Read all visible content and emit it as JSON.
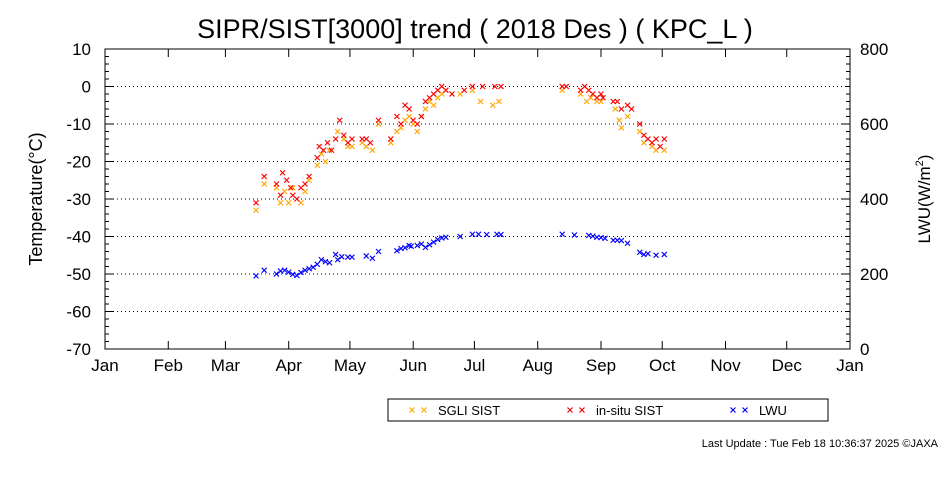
{
  "chart_data": {
    "type": "scatter",
    "title": "SIPR/SIST[3000] trend ( 2018 Des ) ( KPC_L )",
    "ylabel": "Temperature(°C)",
    "ylabel_right_main": "LWU(W/m",
    "ylabel_right_sup": "2",
    "ylabel_right_end": ")",
    "ylim": [
      -70,
      10
    ],
    "y_ticks": [
      "10",
      "0",
      "-10",
      "-20",
      "-30",
      "-40",
      "-50",
      "-60",
      "-70"
    ],
    "y2lim": [
      0,
      800
    ],
    "y2_ticks": [
      "800",
      "600",
      "400",
      "200",
      "0"
    ],
    "xlim": [
      0,
      365
    ],
    "x_ticks": [
      "Jan",
      "Feb",
      "Mar",
      "Apr",
      "May",
      "Jun",
      "Jul",
      "Aug",
      "Sep",
      "Oct",
      "Nov",
      "Dec",
      "Jan"
    ],
    "grid": "dotted horizontal at y = 0, -10, -20, -30, -40, -50, -60",
    "legend": "bottom",
    "colors": {
      "sgli": "#ffa500",
      "insitu": "#ff0000",
      "lwu": "#0000ff"
    },
    "series": [
      {
        "name": "SGLI SIST",
        "axis": "left",
        "points": [
          [
            74,
            -33
          ],
          [
            78,
            -26
          ],
          [
            84,
            -27
          ],
          [
            86,
            -31
          ],
          [
            88,
            -28
          ],
          [
            90,
            -31
          ],
          [
            92,
            -27
          ],
          [
            96,
            -31
          ],
          [
            98,
            -28
          ],
          [
            100,
            -25
          ],
          [
            104,
            -21
          ],
          [
            106,
            -18
          ],
          [
            108,
            -20
          ],
          [
            110,
            -17
          ],
          [
            114,
            -12
          ],
          [
            117,
            -14
          ],
          [
            119,
            -16
          ],
          [
            121,
            -16
          ],
          [
            126,
            -15
          ],
          [
            128,
            -16
          ],
          [
            131,
            -17
          ],
          [
            134,
            -10
          ],
          [
            140,
            -15
          ],
          [
            143,
            -12
          ],
          [
            145,
            -11
          ],
          [
            147,
            -9
          ],
          [
            149,
            -8
          ],
          [
            151,
            -10
          ],
          [
            153,
            -12
          ],
          [
            155,
            -8
          ],
          [
            157,
            -6
          ],
          [
            159,
            -4
          ],
          [
            161,
            -5
          ],
          [
            163,
            -3
          ],
          [
            165,
            -2
          ],
          [
            167,
            -1
          ],
          [
            174,
            -2
          ],
          [
            180,
            -1
          ],
          [
            184,
            -4
          ],
          [
            190,
            -5
          ],
          [
            193,
            -4
          ],
          [
            224,
            -1
          ],
          [
            233,
            -2
          ],
          [
            236,
            -4
          ],
          [
            238,
            -3
          ],
          [
            241,
            -4
          ],
          [
            243,
            -4
          ],
          [
            250,
            -6
          ],
          [
            252,
            -9
          ],
          [
            253,
            -11
          ],
          [
            256,
            -8
          ],
          [
            262,
            -12
          ],
          [
            264,
            -15
          ],
          [
            268,
            -16
          ],
          [
            270,
            -17
          ],
          [
            274,
            -17
          ]
        ]
      },
      {
        "name": "in-situ SIST",
        "axis": "left",
        "points": [
          [
            74,
            -31
          ],
          [
            78,
            -24
          ],
          [
            84,
            -26
          ],
          [
            86,
            -29
          ],
          [
            87,
            -23
          ],
          [
            89,
            -25
          ],
          [
            91,
            -27
          ],
          [
            92,
            -29
          ],
          [
            94,
            -30
          ],
          [
            96,
            -27
          ],
          [
            98,
            -26
          ],
          [
            100,
            -24
          ],
          [
            104,
            -19
          ],
          [
            105,
            -16
          ],
          [
            107,
            -17
          ],
          [
            109,
            -15
          ],
          [
            111,
            -17
          ],
          [
            113,
            -14
          ],
          [
            115,
            -9
          ],
          [
            117,
            -13
          ],
          [
            119,
            -15
          ],
          [
            121,
            -14
          ],
          [
            126,
            -14
          ],
          [
            128,
            -14
          ],
          [
            130,
            -15
          ],
          [
            134,
            -9
          ],
          [
            140,
            -14
          ],
          [
            143,
            -8
          ],
          [
            145,
            -10
          ],
          [
            147,
            -5
          ],
          [
            149,
            -6
          ],
          [
            151,
            -9
          ],
          [
            153,
            -10
          ],
          [
            155,
            -8
          ],
          [
            157,
            -4
          ],
          [
            159,
            -3
          ],
          [
            161,
            -2
          ],
          [
            163,
            -1
          ],
          [
            165,
            0
          ],
          [
            167,
            -1
          ],
          [
            170,
            -2
          ],
          [
            176,
            -1
          ],
          [
            180,
            0
          ],
          [
            185,
            0
          ],
          [
            191,
            0
          ],
          [
            194,
            0
          ],
          [
            224,
            0
          ],
          [
            226,
            0
          ],
          [
            233,
            -1
          ],
          [
            235,
            0
          ],
          [
            237,
            -1
          ],
          [
            239,
            -2
          ],
          [
            241,
            -3
          ],
          [
            243,
            -2
          ],
          [
            244,
            -3
          ],
          [
            249,
            -4
          ],
          [
            251,
            -4
          ],
          [
            253,
            -6
          ],
          [
            256,
            -5
          ],
          [
            258,
            -6
          ],
          [
            262,
            -10
          ],
          [
            264,
            -13
          ],
          [
            266,
            -14
          ],
          [
            268,
            -15
          ],
          [
            270,
            -14
          ],
          [
            272,
            -16
          ],
          [
            274,
            -14
          ]
        ]
      },
      {
        "name": "LWU",
        "axis": "right",
        "points": [
          [
            74,
            195
          ],
          [
            78,
            210
          ],
          [
            84,
            200
          ],
          [
            86,
            208
          ],
          [
            88,
            210
          ],
          [
            90,
            205
          ],
          [
            92,
            199
          ],
          [
            94,
            196
          ],
          [
            96,
            204
          ],
          [
            98,
            210
          ],
          [
            100,
            214
          ],
          [
            102,
            218
          ],
          [
            104,
            226
          ],
          [
            106,
            238
          ],
          [
            108,
            233
          ],
          [
            110,
            230
          ],
          [
            113,
            252
          ],
          [
            114,
            238
          ],
          [
            116,
            246
          ],
          [
            119,
            245
          ],
          [
            121,
            245
          ],
          [
            128,
            248
          ],
          [
            131,
            242
          ],
          [
            134,
            260
          ],
          [
            143,
            262
          ],
          [
            145,
            268
          ],
          [
            147,
            270
          ],
          [
            149,
            276
          ],
          [
            150,
            274
          ],
          [
            153,
            276
          ],
          [
            155,
            280
          ],
          [
            157,
            271
          ],
          [
            159,
            278
          ],
          [
            161,
            285
          ],
          [
            163,
            292
          ],
          [
            165,
            296
          ],
          [
            167,
            298
          ],
          [
            174,
            300
          ],
          [
            180,
            306
          ],
          [
            183,
            306
          ],
          [
            187,
            305
          ],
          [
            192,
            306
          ],
          [
            194,
            305
          ],
          [
            224,
            306
          ],
          [
            230,
            304
          ],
          [
            237,
            303
          ],
          [
            239,
            301
          ],
          [
            241,
            298
          ],
          [
            243,
            297
          ],
          [
            245,
            295
          ],
          [
            249,
            290
          ],
          [
            251,
            290
          ],
          [
            253,
            289
          ],
          [
            256,
            282
          ],
          [
            262,
            258
          ],
          [
            264,
            252
          ],
          [
            266,
            254
          ],
          [
            270,
            250
          ],
          [
            274,
            252
          ]
        ]
      }
    ]
  },
  "footer": {
    "last_update": "Last Update : Tue Feb 18 10:36:37 2025",
    "credit": "©JAXA"
  }
}
